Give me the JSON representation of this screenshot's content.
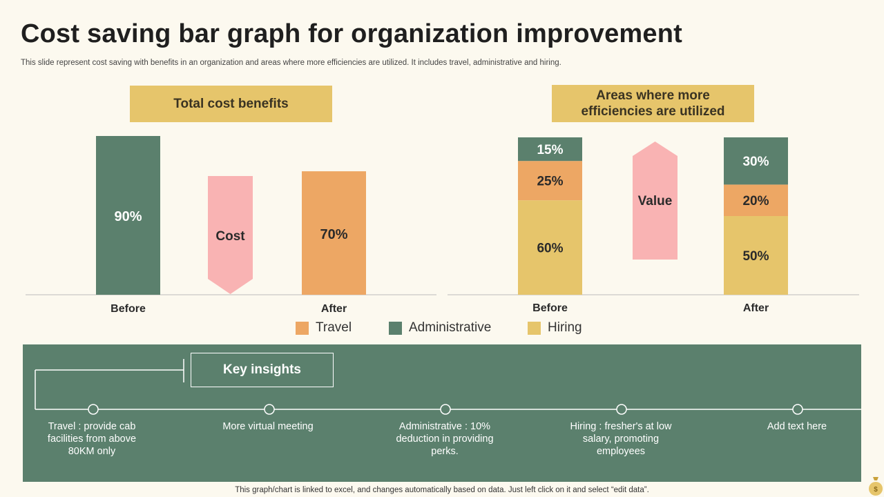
{
  "title": "Cost saving bar graph for organization improvement",
  "subtitle": "This slide represent cost saving with benefits in an organization and areas where more efficiencies are utilized. It includes travel, administrative and hiring.",
  "colors": {
    "travel": "#eda764",
    "administrative": "#5b806d",
    "hiring": "#e6c56b",
    "pink": "#f9b3b3",
    "panel": "#5b806d",
    "header": "#e6c56b"
  },
  "chart_data": [
    {
      "type": "bar",
      "title": "Total cost benefits",
      "categories": [
        "Before",
        "After"
      ],
      "values": [
        90,
        70
      ],
      "labels": [
        "90%",
        "70%"
      ],
      "arrow_label": "Cost",
      "arrow_direction": "down",
      "ylim": [
        0,
        90
      ]
    },
    {
      "type": "bar",
      "stacked": true,
      "title": "Areas where more efficiencies are utilized",
      "categories": [
        "Before",
        "After"
      ],
      "series": [
        {
          "name": "Hiring",
          "values": [
            60,
            50
          ],
          "labels": [
            "60%",
            "50%"
          ]
        },
        {
          "name": "Travel",
          "values": [
            25,
            20
          ],
          "labels": [
            "25%",
            "20%"
          ]
        },
        {
          "name": "Administrative",
          "values": [
            15,
            30
          ],
          "labels": [
            "15%",
            "30%"
          ]
        }
      ],
      "arrow_label": "Value",
      "arrow_direction": "up",
      "ylim": [
        0,
        100
      ]
    }
  ],
  "legend": [
    {
      "name": "Travel",
      "color": "#eda764"
    },
    {
      "name": "Administrative",
      "color": "#5b806d"
    },
    {
      "name": "Hiring",
      "color": "#e6c56b"
    }
  ],
  "insights": {
    "heading": "Key insights",
    "items": [
      "Travel : provide cab facilities from above 80KM only",
      "More virtual meeting",
      "Administrative : 10% deduction in providing perks.",
      "Hiring : fresher's at low salary, promoting employees",
      "Add text here"
    ]
  },
  "footer": "This graph/chart is linked to excel,  and changes automatically based on data. Just left click on it and select “edit data”."
}
